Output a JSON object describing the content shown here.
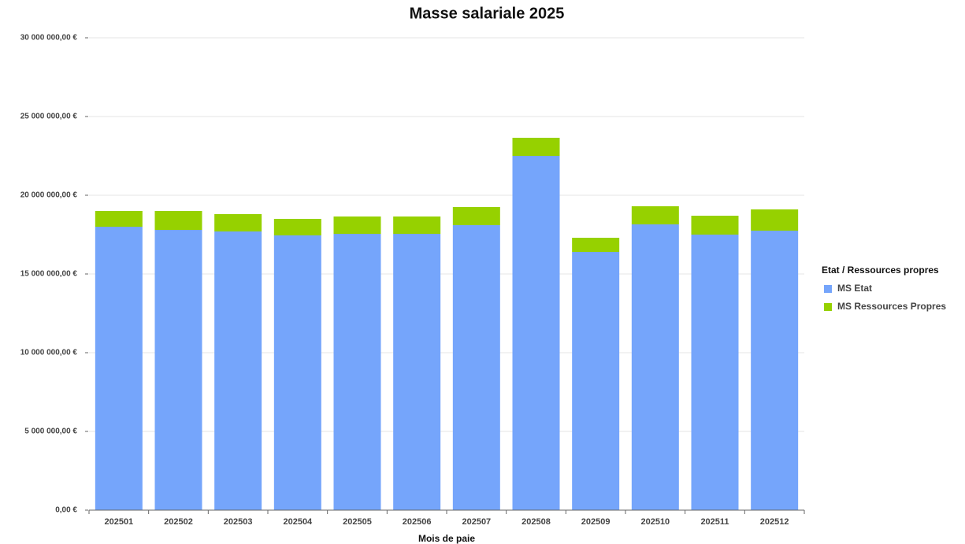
{
  "chart_data": {
    "type": "stacked_bar",
    "title": "Masse salariale 2025",
    "x_label": "Mois de paie",
    "legend_title": "Etat / Ressources propres",
    "categories": [
      "202501",
      "202502",
      "202503",
      "202504",
      "202505",
      "202506",
      "202507",
      "202508",
      "202509",
      "202510",
      "202511",
      "202512"
    ],
    "series": [
      {
        "name": "MS Etat",
        "color": "#75a5fb",
        "values": [
          18000000,
          17800000,
          17700000,
          17450000,
          17550000,
          17550000,
          18100000,
          22500000,
          16400000,
          18150000,
          17500000,
          17750000
        ]
      },
      {
        "name": "MS Ressources Propres",
        "color": "#96d100",
        "values": [
          1000000,
          1200000,
          1100000,
          1050000,
          1100000,
          1100000,
          1150000,
          1150000,
          900000,
          1150000,
          1200000,
          1350000
        ]
      }
    ],
    "ylim": [
      0,
      30000000
    ],
    "yticks": [
      {
        "value": 0,
        "label": "0,00 €"
      },
      {
        "value": 5000000,
        "label": "5 000 000,00 €"
      },
      {
        "value": 10000000,
        "label": "10 000 000,00 €"
      },
      {
        "value": 15000000,
        "label": "15 000 000,00 €"
      },
      {
        "value": 20000000,
        "label": "20 000 000,00 €"
      },
      {
        "value": 25000000,
        "label": "25 000 000,00 €"
      },
      {
        "value": 30000000,
        "label": "30 000 000,00 €"
      }
    ],
    "grid": true,
    "legend": "right"
  }
}
